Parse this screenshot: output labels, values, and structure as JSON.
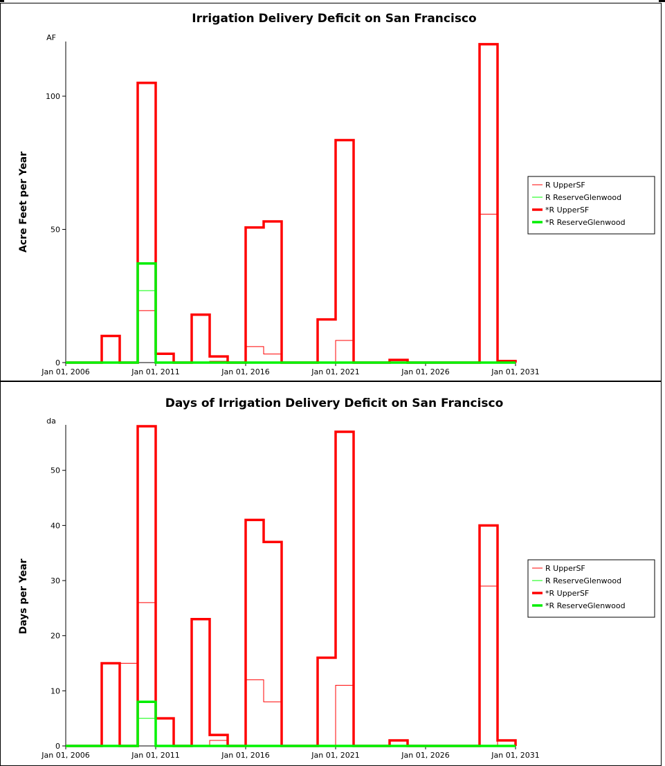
{
  "chart_data": [
    {
      "type": "line",
      "step": true,
      "title": "Irrigation Delivery Deficit on San Francisco",
      "ylabel": "Acre Feet per Year",
      "yunit": "AF",
      "x_tick_labels": [
        "Jan 01, 2006",
        "Jan 01, 2011",
        "Jan 01, 2016",
        "Jan 01, 2021",
        "Jan 01, 2026",
        "Jan 01, 2031"
      ],
      "x": [
        2006,
        2031
      ],
      "y_ticks": [
        0,
        50,
        100
      ],
      "ylim": [
        0,
        120
      ],
      "legend_position": "right",
      "series": [
        {
          "name": "R UpperSF",
          "color": "#ff0000",
          "width": "thin",
          "values": [
            [
              2009,
              0
            ],
            [
              2010,
              19.5
            ],
            [
              2011,
              0
            ],
            [
              2012,
              0
            ],
            [
              2013,
              0
            ],
            [
              2014,
              0.5
            ],
            [
              2015,
              0
            ],
            [
              2016,
              6
            ],
            [
              2017,
              3.2
            ],
            [
              2018,
              0
            ],
            [
              2019,
              0
            ],
            [
              2020,
              0
            ],
            [
              2021,
              8.3
            ],
            [
              2022,
              0
            ],
            [
              2023,
              0
            ],
            [
              2024,
              0
            ],
            [
              2025,
              0
            ],
            [
              2026,
              0
            ],
            [
              2027,
              0
            ],
            [
              2028,
              0
            ],
            [
              2029,
              55.7
            ],
            [
              2030,
              0
            ]
          ]
        },
        {
          "name": "R ReserveGlenwood",
          "color": "#00ff00",
          "width": "thin",
          "values": [
            [
              2010,
              27
            ]
          ]
        },
        {
          "name": "*R UpperSF",
          "color": "#ff0000",
          "width": "thick",
          "values": [
            [
              2008,
              10
            ],
            [
              2009,
              0
            ],
            [
              2010,
              105
            ],
            [
              2011,
              3.3
            ],
            [
              2012,
              0
            ],
            [
              2013,
              18
            ],
            [
              2014,
              2.3
            ],
            [
              2015,
              0
            ],
            [
              2016,
              50.7
            ],
            [
              2017,
              53
            ],
            [
              2018,
              0
            ],
            [
              2019,
              0
            ],
            [
              2020,
              16.2
            ],
            [
              2021,
              83.5
            ],
            [
              2022,
              0
            ],
            [
              2023,
              0
            ],
            [
              2024,
              1
            ],
            [
              2025,
              0
            ],
            [
              2026,
              0
            ],
            [
              2027,
              0
            ],
            [
              2028,
              0
            ],
            [
              2029,
              119.5
            ],
            [
              2030,
              0.6
            ]
          ]
        },
        {
          "name": "*R ReserveGlenwood",
          "color": "#00ee00",
          "width": "thick",
          "values": [
            [
              2010,
              37.2
            ]
          ]
        }
      ]
    },
    {
      "type": "line",
      "step": true,
      "title": "Days of Irrigation Delivery Deficit on San Francisco",
      "ylabel": "Days per Year",
      "yunit": "da",
      "x_tick_labels": [
        "Jan 01, 2006",
        "Jan 01, 2011",
        "Jan 01, 2016",
        "Jan 01, 2021",
        "Jan 01, 2026",
        "Jan 01, 2031"
      ],
      "x": [
        2006,
        2031
      ],
      "y_ticks": [
        0,
        10,
        20,
        30,
        40,
        50
      ],
      "ylim": [
        0,
        58
      ],
      "legend_position": "right",
      "series": [
        {
          "name": "R UpperSF",
          "color": "#ff0000",
          "width": "thin",
          "values": [
            [
              2009,
              15
            ],
            [
              2010,
              26
            ],
            [
              2014,
              1
            ],
            [
              2016,
              12
            ],
            [
              2017,
              8
            ],
            [
              2021,
              11
            ],
            [
              2029,
              29
            ]
          ]
        },
        {
          "name": "R ReserveGlenwood",
          "color": "#00ff00",
          "width": "thin",
          "values": [
            [
              2010,
              5
            ]
          ]
        },
        {
          "name": "*R UpperSF",
          "color": "#ff0000",
          "width": "thick",
          "values": [
            [
              2008,
              15
            ],
            [
              2009,
              0
            ],
            [
              2010,
              58
            ],
            [
              2011,
              5
            ],
            [
              2012,
              0
            ],
            [
              2013,
              23
            ],
            [
              2014,
              2
            ],
            [
              2015,
              0
            ],
            [
              2016,
              41
            ],
            [
              2017,
              37
            ],
            [
              2018,
              0
            ],
            [
              2019,
              0
            ],
            [
              2020,
              16
            ],
            [
              2021,
              57
            ],
            [
              2022,
              0
            ],
            [
              2023,
              0
            ],
            [
              2024,
              1
            ],
            [
              2025,
              0
            ],
            [
              2026,
              0
            ],
            [
              2027,
              0
            ],
            [
              2028,
              0
            ],
            [
              2029,
              40
            ],
            [
              2030,
              1
            ]
          ]
        },
        {
          "name": "*R ReserveGlenwood",
          "color": "#00ee00",
          "width": "thick",
          "values": [
            [
              2010,
              8
            ]
          ]
        }
      ]
    }
  ]
}
